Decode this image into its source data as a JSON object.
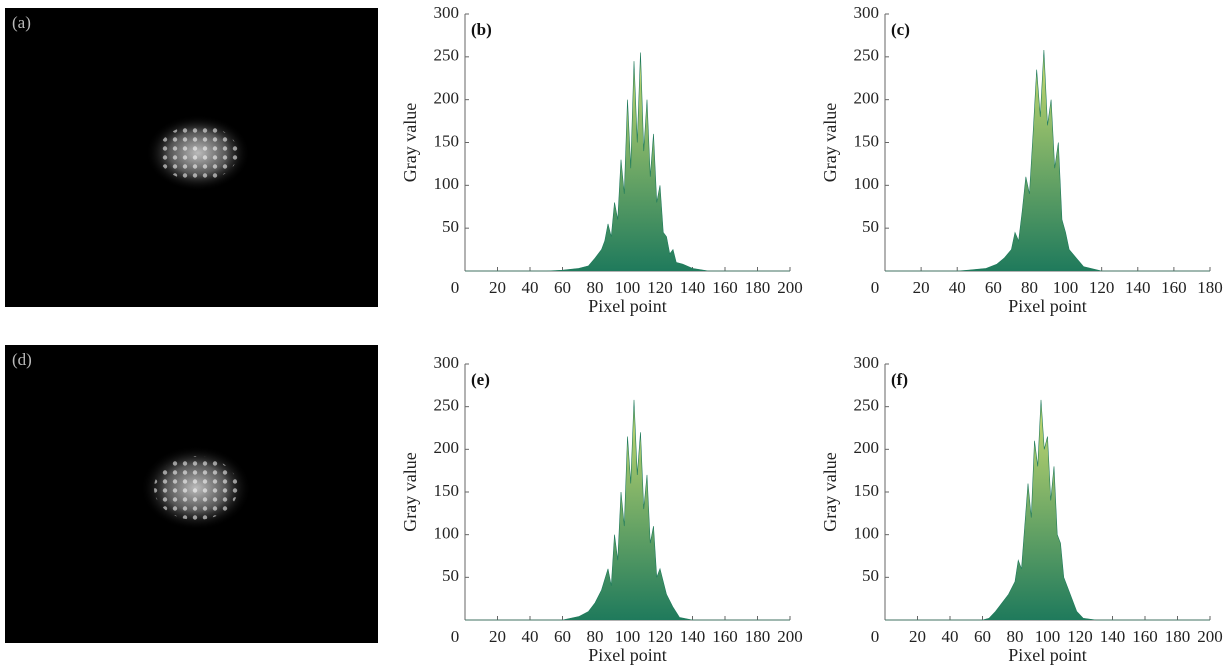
{
  "panels": [
    {
      "label": "(a)"
    },
    {
      "label": "(d)"
    }
  ],
  "chart_data": [
    {
      "type": "area",
      "label": "(b)",
      "xlabel": "Pixel point",
      "ylabel": "Gray value",
      "x": [
        0,
        20,
        40,
        50,
        60,
        70,
        76,
        80,
        84,
        86,
        88,
        90,
        92,
        94,
        96,
        98,
        100,
        102,
        104,
        106,
        108,
        110,
        112,
        114,
        116,
        118,
        120,
        122,
        124,
        126,
        128,
        130,
        134,
        140,
        150,
        160,
        180,
        200
      ],
      "values": [
        0,
        0,
        0,
        0,
        1,
        3,
        6,
        15,
        25,
        35,
        55,
        40,
        80,
        60,
        130,
        90,
        200,
        120,
        245,
        150,
        255,
        140,
        200,
        110,
        160,
        80,
        100,
        45,
        40,
        20,
        25,
        10,
        8,
        3,
        0,
        0,
        0,
        0
      ],
      "xlim": [
        0,
        200
      ],
      "ylim": [
        0,
        300
      ],
      "xticks": [
        0,
        20,
        40,
        60,
        80,
        100,
        120,
        140,
        160,
        180,
        200
      ],
      "yticks": [
        50,
        100,
        150,
        200,
        250,
        300
      ],
      "colors": [
        "#1f7a5c",
        "#e4ec74"
      ]
    },
    {
      "type": "area",
      "label": "(c)",
      "xlabel": "Pixel point",
      "ylabel": "Gray value",
      "x": [
        0,
        20,
        40,
        46,
        56,
        62,
        66,
        70,
        72,
        74,
        76,
        78,
        80,
        82,
        84,
        86,
        88,
        90,
        92,
        94,
        96,
        98,
        100,
        102,
        106,
        110,
        116,
        120,
        140,
        180
      ],
      "values": [
        0,
        0,
        0,
        1,
        3,
        8,
        15,
        25,
        45,
        35,
        70,
        110,
        90,
        160,
        235,
        180,
        258,
        170,
        200,
        120,
        150,
        60,
        45,
        25,
        15,
        5,
        2,
        0,
        0,
        0
      ],
      "xlim": [
        0,
        180
      ],
      "ylim": [
        0,
        300
      ],
      "xticks": [
        0,
        20,
        40,
        60,
        80,
        100,
        120,
        140,
        160,
        180
      ],
      "yticks": [
        50,
        100,
        150,
        200,
        250,
        300
      ],
      "colors": [
        "#1f7a5c",
        "#e4ec74"
      ]
    },
    {
      "type": "area",
      "label": "(e)",
      "xlabel": "Pixel point",
      "ylabel": "Gray value",
      "x": [
        0,
        40,
        60,
        70,
        76,
        80,
        84,
        88,
        90,
        92,
        94,
        96,
        98,
        100,
        102,
        104,
        106,
        108,
        110,
        112,
        114,
        116,
        118,
        120,
        124,
        128,
        132,
        140,
        200
      ],
      "values": [
        0,
        0,
        0,
        4,
        10,
        20,
        35,
        60,
        40,
        100,
        70,
        150,
        110,
        215,
        160,
        258,
        170,
        220,
        130,
        170,
        90,
        110,
        50,
        60,
        30,
        15,
        3,
        0,
        0
      ],
      "xlim": [
        0,
        200
      ],
      "ylim": [
        0,
        300
      ],
      "xticks": [
        0,
        20,
        40,
        60,
        80,
        100,
        120,
        140,
        160,
        180,
        200
      ],
      "yticks": [
        50,
        100,
        150,
        200,
        250,
        300
      ],
      "colors": [
        "#1f7a5c",
        "#e4ec74"
      ]
    },
    {
      "type": "area",
      "label": "(f)",
      "xlabel": "Pixel point",
      "ylabel": "Gray value",
      "x": [
        0,
        40,
        60,
        64,
        68,
        72,
        76,
        80,
        82,
        84,
        86,
        88,
        90,
        92,
        94,
        96,
        98,
        100,
        102,
        104,
        106,
        108,
        110,
        114,
        118,
        122,
        130,
        200
      ],
      "values": [
        0,
        0,
        0,
        2,
        10,
        20,
        30,
        45,
        70,
        60,
        110,
        160,
        120,
        210,
        180,
        258,
        200,
        215,
        140,
        180,
        100,
        90,
        50,
        30,
        10,
        2,
        0,
        0
      ],
      "xlim": [
        0,
        200
      ],
      "ylim": [
        0,
        300
      ],
      "xticks": [
        0,
        20,
        40,
        60,
        80,
        100,
        120,
        140,
        160,
        180,
        200
      ],
      "yticks": [
        50,
        100,
        150,
        200,
        250,
        300
      ],
      "colors": [
        "#1f7a5c",
        "#e4ec74"
      ]
    }
  ]
}
